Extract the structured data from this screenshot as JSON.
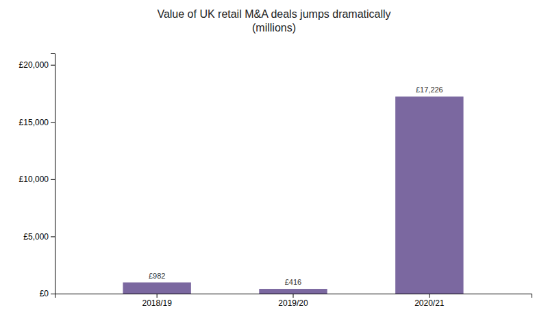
{
  "chart_data": {
    "type": "bar",
    "title": "Value of UK retail M&A deals jumps dramatically\n(millions)",
    "categories": [
      "2018/19",
      "2019/20",
      "2020/21"
    ],
    "values": [
      982,
      416,
      17226
    ],
    "value_labels": [
      "£982",
      "£416",
      "£17,226"
    ],
    "data_labels": true,
    "color": "#7B68A0",
    "ylim": [
      0,
      21000
    ],
    "yticks": [
      {
        "value": 0,
        "label": "£0"
      },
      {
        "value": 5000,
        "label": "£5,000"
      },
      {
        "value": 10000,
        "label": "£10,000"
      },
      {
        "value": 15000,
        "label": "£15,000"
      },
      {
        "value": 20000,
        "label": "£20,000"
      }
    ],
    "grid": false
  }
}
